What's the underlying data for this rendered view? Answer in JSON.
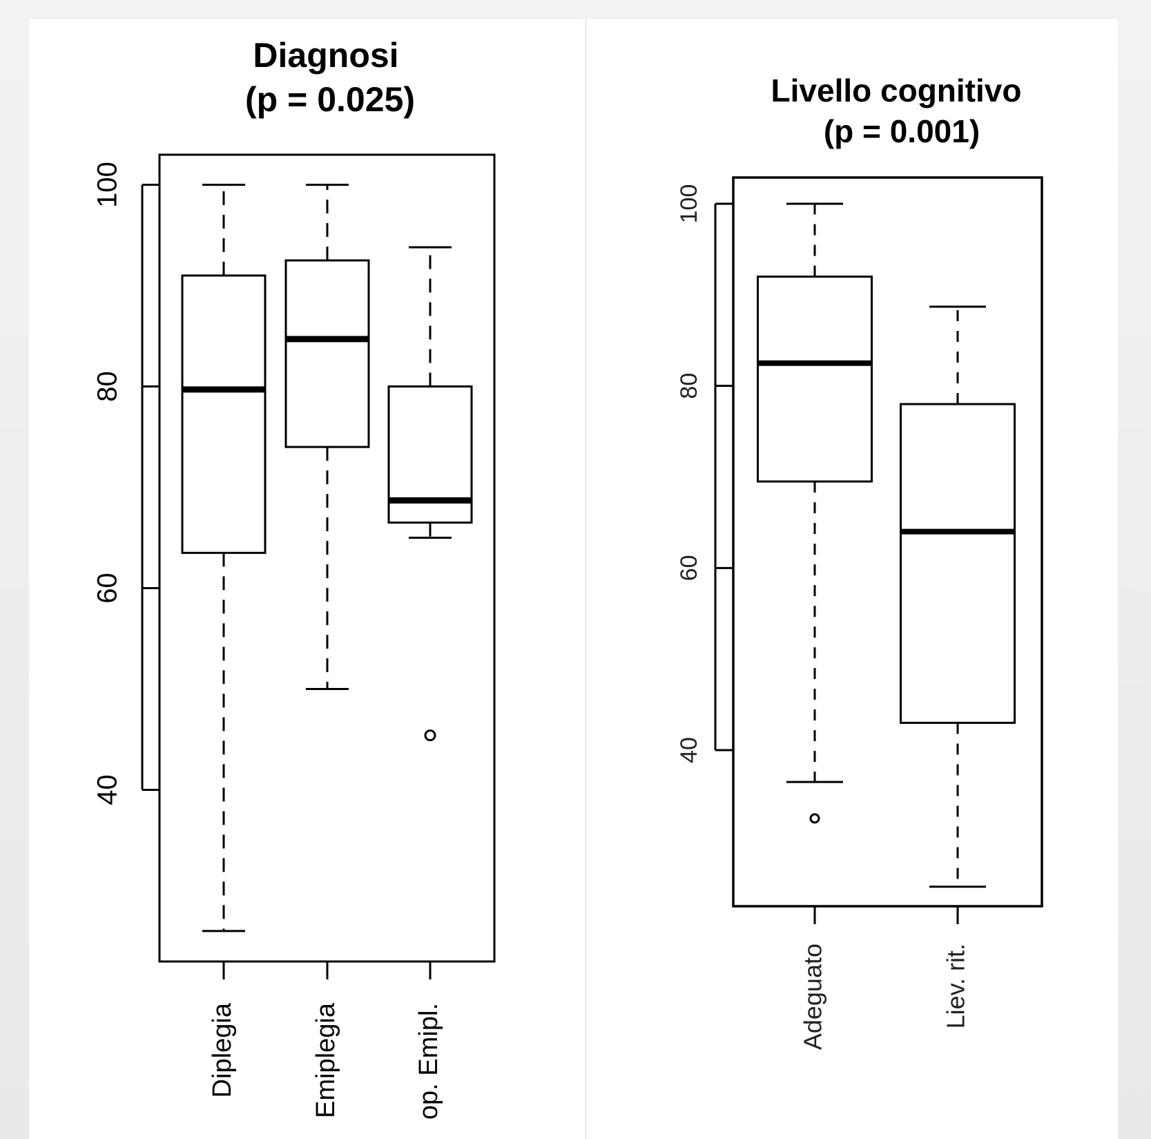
{
  "chart_data": [
    {
      "type": "box",
      "title": "Diagnosi",
      "subtitle": "(p = 0.025)",
      "ylim": [
        23,
        103
      ],
      "yticks": [
        40,
        60,
        80,
        100
      ],
      "categories": [
        "Diplegia",
        "Emiplegia",
        "op. Emipl."
      ],
      "boxes": [
        {
          "category": "Diplegia",
          "whisker_low": 26,
          "q1": 63.5,
          "median": 79.7,
          "q3": 91,
          "whisker_high": 100,
          "outliers": []
        },
        {
          "category": "Emiplegia",
          "whisker_low": 50,
          "q1": 74,
          "median": 84.7,
          "q3": 92.5,
          "whisker_high": 100,
          "outliers": []
        },
        {
          "category": "op. Emipl.",
          "whisker_low": 65,
          "q1": 66.5,
          "median": 68.7,
          "q3": 80,
          "whisker_high": 93.8,
          "outliers": [
            45.4
          ]
        }
      ]
    },
    {
      "type": "box",
      "title": "Livello cognitivo",
      "subtitle": "(p = 0.001)",
      "ylim": [
        23,
        103
      ],
      "yticks": [
        40,
        60,
        80,
        100
      ],
      "categories": [
        "Adeguato",
        "Liev. rit."
      ],
      "boxes": [
        {
          "category": "Adeguato",
          "whisker_low": 36.5,
          "q1": 69.5,
          "median": 82.5,
          "q3": 92,
          "whisker_high": 100,
          "outliers": [
            32.5
          ]
        },
        {
          "category": "Liev. rit.",
          "whisker_low": 25,
          "q1": 43,
          "median": 64,
          "q3": 78,
          "whisker_high": 88.7,
          "outliers": []
        }
      ]
    }
  ],
  "colors": {
    "background": "#eeeeee",
    "panel": "#ffffff",
    "stroke": "#000000"
  }
}
